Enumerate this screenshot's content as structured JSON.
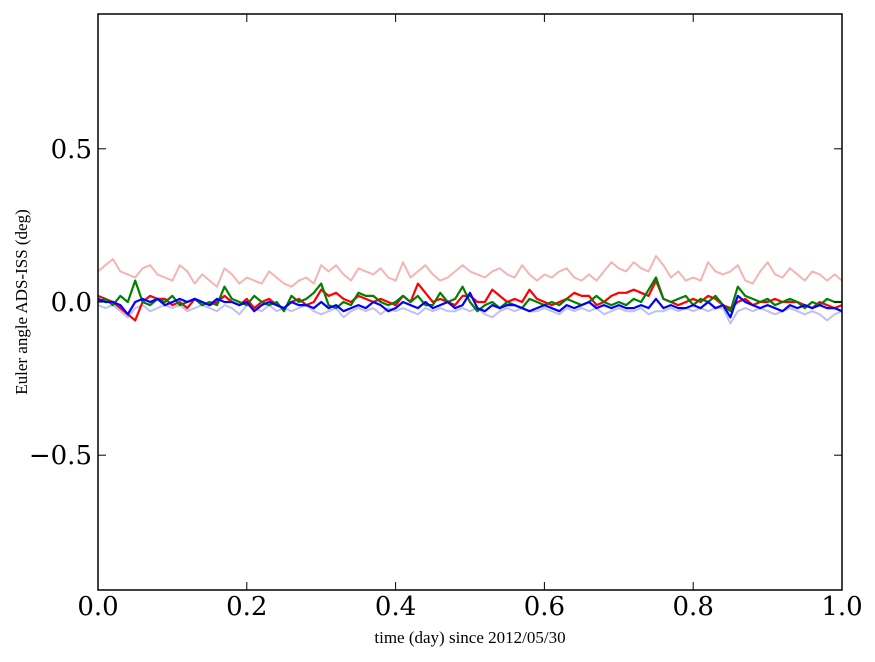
{
  "chart_data": {
    "type": "line",
    "title": "",
    "xlabel": "time (day) since 2012/05/30",
    "ylabel": "Euler angle ADS-ISS (deg)",
    "xlim": [
      0.0,
      1.0
    ],
    "ylim": [
      -0.94,
      0.94
    ],
    "xticks": [
      0.0,
      0.2,
      0.4,
      0.6,
      0.8,
      1.0
    ],
    "xtick_labels": [
      "0.0",
      "0.2",
      "0.4",
      "0.6",
      "0.8",
      "1.0"
    ],
    "yticks": [
      -0.5,
      0.0,
      0.5
    ],
    "ytick_labels": [
      "−0.5",
      "0.0",
      "0.5"
    ],
    "grid": false,
    "legend": "none",
    "series": [
      {
        "color": "#f5b4b4",
        "x": [
          0.0,
          0.01,
          0.02,
          0.03,
          0.04,
          0.05,
          0.06,
          0.07,
          0.08,
          0.09,
          0.1,
          0.11,
          0.12,
          0.13,
          0.14,
          0.15,
          0.16,
          0.17,
          0.18,
          0.19,
          0.2,
          0.21,
          0.22,
          0.23,
          0.24,
          0.25,
          0.26,
          0.27,
          0.28,
          0.29,
          0.3,
          0.31,
          0.32,
          0.33,
          0.34,
          0.35,
          0.36,
          0.37,
          0.38,
          0.39,
          0.4,
          0.41,
          0.42,
          0.43,
          0.44,
          0.45,
          0.46,
          0.47,
          0.48,
          0.49,
          0.5,
          0.51,
          0.52,
          0.53,
          0.54,
          0.55,
          0.56,
          0.57,
          0.58,
          0.59,
          0.6,
          0.61,
          0.62,
          0.63,
          0.64,
          0.65,
          0.66,
          0.67,
          0.68,
          0.69,
          0.7,
          0.71,
          0.72,
          0.73,
          0.74,
          0.75,
          0.76,
          0.77,
          0.78,
          0.79,
          0.8,
          0.81,
          0.82,
          0.83,
          0.84,
          0.85,
          0.86,
          0.87,
          0.88,
          0.89,
          0.9,
          0.91,
          0.92,
          0.93,
          0.94,
          0.95,
          0.96,
          0.97,
          0.98,
          0.99,
          1.0
        ],
        "y": [
          0.1,
          0.12,
          0.14,
          0.1,
          0.09,
          0.08,
          0.11,
          0.12,
          0.09,
          0.08,
          0.07,
          0.12,
          0.1,
          0.06,
          0.09,
          0.07,
          0.05,
          0.11,
          0.09,
          0.06,
          0.08,
          0.07,
          0.06,
          0.1,
          0.08,
          0.06,
          0.05,
          0.07,
          0.08,
          0.06,
          0.12,
          0.1,
          0.12,
          0.09,
          0.07,
          0.11,
          0.1,
          0.09,
          0.11,
          0.08,
          0.07,
          0.13,
          0.08,
          0.1,
          0.12,
          0.09,
          0.07,
          0.08,
          0.1,
          0.12,
          0.1,
          0.09,
          0.08,
          0.1,
          0.11,
          0.09,
          0.08,
          0.12,
          0.09,
          0.07,
          0.09,
          0.08,
          0.1,
          0.11,
          0.08,
          0.07,
          0.09,
          0.07,
          0.1,
          0.13,
          0.11,
          0.1,
          0.13,
          0.11,
          0.1,
          0.15,
          0.12,
          0.08,
          0.1,
          0.07,
          0.08,
          0.07,
          0.13,
          0.1,
          0.09,
          0.1,
          0.12,
          0.07,
          0.06,
          0.1,
          0.13,
          0.09,
          0.08,
          0.11,
          0.09,
          0.07,
          0.1,
          0.09,
          0.07,
          0.09,
          0.07
        ]
      },
      {
        "color": "#c0c0f5",
        "x": [
          0.0,
          0.01,
          0.02,
          0.03,
          0.04,
          0.05,
          0.06,
          0.07,
          0.08,
          0.09,
          0.1,
          0.11,
          0.12,
          0.13,
          0.14,
          0.15,
          0.16,
          0.17,
          0.18,
          0.19,
          0.2,
          0.21,
          0.22,
          0.23,
          0.24,
          0.25,
          0.26,
          0.27,
          0.28,
          0.29,
          0.3,
          0.31,
          0.32,
          0.33,
          0.34,
          0.35,
          0.36,
          0.37,
          0.38,
          0.39,
          0.4,
          0.41,
          0.42,
          0.43,
          0.44,
          0.45,
          0.46,
          0.47,
          0.48,
          0.49,
          0.5,
          0.51,
          0.52,
          0.53,
          0.54,
          0.55,
          0.56,
          0.57,
          0.58,
          0.59,
          0.6,
          0.61,
          0.62,
          0.63,
          0.64,
          0.65,
          0.66,
          0.67,
          0.68,
          0.69,
          0.7,
          0.71,
          0.72,
          0.73,
          0.74,
          0.75,
          0.76,
          0.77,
          0.78,
          0.79,
          0.8,
          0.81,
          0.82,
          0.83,
          0.84,
          0.85,
          0.86,
          0.87,
          0.88,
          0.89,
          0.9,
          0.91,
          0.92,
          0.93,
          0.94,
          0.95,
          0.96,
          0.97,
          0.98,
          0.99,
          1.0
        ],
        "y": [
          -0.01,
          -0.02,
          -0.01,
          -0.03,
          -0.05,
          -0.02,
          -0.01,
          -0.03,
          -0.02,
          -0.01,
          -0.02,
          -0.01,
          -0.03,
          -0.02,
          -0.01,
          -0.02,
          -0.03,
          -0.01,
          -0.02,
          -0.04,
          -0.01,
          -0.02,
          -0.03,
          -0.01,
          -0.03,
          -0.02,
          -0.03,
          -0.02,
          -0.01,
          -0.03,
          -0.04,
          -0.03,
          -0.02,
          -0.05,
          -0.03,
          -0.02,
          -0.03,
          -0.02,
          -0.04,
          -0.02,
          -0.03,
          -0.02,
          -0.03,
          -0.04,
          -0.02,
          -0.03,
          -0.02,
          -0.03,
          -0.03,
          -0.02,
          -0.03,
          -0.02,
          -0.04,
          -0.05,
          -0.03,
          -0.02,
          -0.03,
          -0.02,
          -0.03,
          -0.03,
          -0.02,
          -0.03,
          -0.04,
          -0.02,
          -0.03,
          -0.02,
          -0.03,
          -0.02,
          -0.04,
          -0.03,
          -0.02,
          -0.03,
          -0.03,
          -0.02,
          -0.04,
          -0.03,
          -0.03,
          -0.02,
          -0.03,
          -0.02,
          -0.03,
          -0.02,
          -0.03,
          -0.02,
          -0.02,
          -0.07,
          -0.03,
          -0.02,
          -0.03,
          -0.02,
          -0.03,
          -0.04,
          -0.03,
          -0.02,
          -0.03,
          -0.04,
          -0.03,
          -0.04,
          -0.06,
          -0.04,
          -0.03
        ]
      },
      {
        "color": "#ff0000",
        "x": [
          0.0,
          0.01,
          0.02,
          0.03,
          0.04,
          0.05,
          0.06,
          0.07,
          0.08,
          0.09,
          0.1,
          0.11,
          0.12,
          0.13,
          0.14,
          0.15,
          0.16,
          0.17,
          0.18,
          0.19,
          0.2,
          0.21,
          0.22,
          0.23,
          0.24,
          0.25,
          0.26,
          0.27,
          0.28,
          0.29,
          0.3,
          0.31,
          0.32,
          0.33,
          0.34,
          0.35,
          0.36,
          0.37,
          0.38,
          0.39,
          0.4,
          0.41,
          0.42,
          0.43,
          0.44,
          0.45,
          0.46,
          0.47,
          0.48,
          0.49,
          0.5,
          0.51,
          0.52,
          0.53,
          0.54,
          0.55,
          0.56,
          0.57,
          0.58,
          0.59,
          0.6,
          0.61,
          0.62,
          0.63,
          0.64,
          0.65,
          0.66,
          0.67,
          0.68,
          0.69,
          0.7,
          0.71,
          0.72,
          0.73,
          0.74,
          0.75,
          0.76,
          0.77,
          0.78,
          0.79,
          0.8,
          0.81,
          0.82,
          0.83,
          0.84,
          0.85,
          0.86,
          0.87,
          0.88,
          0.89,
          0.9,
          0.91,
          0.92,
          0.93,
          0.94,
          0.95,
          0.96,
          0.97,
          0.98,
          0.99,
          1.0
        ],
        "y": [
          0.02,
          0.01,
          0.0,
          -0.02,
          -0.04,
          -0.06,
          0.0,
          0.02,
          0.01,
          0.01,
          -0.01,
          0.0,
          -0.02,
          0.01,
          0.0,
          -0.01,
          0.0,
          0.02,
          0.0,
          -0.01,
          0.01,
          -0.02,
          0.0,
          0.01,
          -0.01,
          -0.02,
          0.0,
          0.01,
          -0.01,
          0.0,
          0.04,
          0.02,
          0.03,
          0.01,
          0.0,
          0.02,
          0.01,
          0.0,
          0.01,
          0.0,
          -0.01,
          0.02,
          0.0,
          0.06,
          0.03,
          0.0,
          0.01,
          0.0,
          -0.01,
          0.02,
          0.02,
          0.0,
          0.0,
          0.04,
          0.02,
          0.0,
          0.01,
          0.0,
          0.04,
          0.01,
          0.0,
          -0.01,
          0.0,
          0.01,
          0.03,
          0.02,
          0.02,
          -0.01,
          0.0,
          0.02,
          0.03,
          0.03,
          0.04,
          0.03,
          0.02,
          0.07,
          0.01,
          0.0,
          -0.01,
          0.0,
          0.01,
          0.0,
          0.02,
          0.01,
          -0.01,
          -0.02,
          0.0,
          0.01,
          -0.01,
          0.0,
          0.0,
          0.01,
          0.0,
          0.0,
          0.0,
          -0.01,
          -0.02,
          0.0,
          -0.01,
          -0.02,
          -0.01
        ]
      },
      {
        "color": "#008000",
        "x": [
          0.0,
          0.01,
          0.02,
          0.03,
          0.04,
          0.05,
          0.06,
          0.07,
          0.08,
          0.09,
          0.1,
          0.11,
          0.12,
          0.13,
          0.14,
          0.15,
          0.16,
          0.17,
          0.18,
          0.19,
          0.2,
          0.21,
          0.22,
          0.23,
          0.24,
          0.25,
          0.26,
          0.27,
          0.28,
          0.29,
          0.3,
          0.31,
          0.32,
          0.33,
          0.34,
          0.35,
          0.36,
          0.37,
          0.38,
          0.39,
          0.4,
          0.41,
          0.42,
          0.43,
          0.44,
          0.45,
          0.46,
          0.47,
          0.48,
          0.49,
          0.5,
          0.51,
          0.52,
          0.53,
          0.54,
          0.55,
          0.56,
          0.57,
          0.58,
          0.59,
          0.6,
          0.61,
          0.62,
          0.63,
          0.64,
          0.65,
          0.66,
          0.67,
          0.68,
          0.69,
          0.7,
          0.71,
          0.72,
          0.73,
          0.74,
          0.75,
          0.76,
          0.77,
          0.78,
          0.79,
          0.8,
          0.81,
          0.82,
          0.83,
          0.84,
          0.85,
          0.86,
          0.87,
          0.88,
          0.89,
          0.9,
          0.91,
          0.92,
          0.93,
          0.94,
          0.95,
          0.96,
          0.97,
          0.98,
          0.99,
          1.0
        ],
        "y": [
          0.0,
          0.01,
          -0.01,
          0.02,
          0.0,
          0.07,
          0.0,
          -0.01,
          0.01,
          0.0,
          0.02,
          -0.01,
          0.0,
          0.01,
          -0.01,
          0.0,
          -0.01,
          0.05,
          0.01,
          0.0,
          -0.01,
          0.02,
          0.0,
          -0.01,
          0.0,
          -0.03,
          0.02,
          0.0,
          0.01,
          0.03,
          0.06,
          -0.01,
          -0.02,
          0.0,
          -0.01,
          0.03,
          0.02,
          0.02,
          0.0,
          -0.01,
          0.0,
          0.02,
          0.0,
          0.02,
          -0.01,
          -0.01,
          0.03,
          0.0,
          0.01,
          0.05,
          0.0,
          -0.03,
          -0.01,
          0.0,
          -0.02,
          0.0,
          -0.01,
          -0.02,
          0.01,
          0.0,
          -0.01,
          0.0,
          -0.01,
          0.01,
          0.0,
          -0.01,
          0.0,
          0.02,
          0.0,
          -0.01,
          0.0,
          -0.01,
          0.01,
          0.0,
          0.04,
          0.08,
          0.01,
          0.0,
          0.01,
          0.02,
          -0.01,
          0.01,
          0.0,
          0.02,
          -0.01,
          -0.03,
          0.05,
          0.02,
          0.01,
          0.0,
          0.01,
          -0.01,
          0.0,
          0.01,
          0.0,
          -0.02,
          0.0,
          -0.01,
          0.01,
          0.0,
          0.0
        ]
      },
      {
        "color": "#0000ff",
        "x": [
          0.0,
          0.01,
          0.02,
          0.03,
          0.04,
          0.05,
          0.06,
          0.07,
          0.08,
          0.09,
          0.1,
          0.11,
          0.12,
          0.13,
          0.14,
          0.15,
          0.16,
          0.17,
          0.18,
          0.19,
          0.2,
          0.21,
          0.22,
          0.23,
          0.24,
          0.25,
          0.26,
          0.27,
          0.28,
          0.29,
          0.3,
          0.31,
          0.32,
          0.33,
          0.34,
          0.35,
          0.36,
          0.37,
          0.38,
          0.39,
          0.4,
          0.41,
          0.42,
          0.43,
          0.44,
          0.45,
          0.46,
          0.47,
          0.48,
          0.49,
          0.5,
          0.51,
          0.52,
          0.53,
          0.54,
          0.55,
          0.56,
          0.57,
          0.58,
          0.59,
          0.6,
          0.61,
          0.62,
          0.63,
          0.64,
          0.65,
          0.66,
          0.67,
          0.68,
          0.69,
          0.7,
          0.71,
          0.72,
          0.73,
          0.74,
          0.75,
          0.76,
          0.77,
          0.78,
          0.79,
          0.8,
          0.81,
          0.82,
          0.83,
          0.84,
          0.85,
          0.86,
          0.87,
          0.88,
          0.89,
          0.9,
          0.91,
          0.92,
          0.93,
          0.94,
          0.95,
          0.96,
          0.97,
          0.98,
          0.99,
          1.0
        ],
        "y": [
          0.01,
          0.0,
          0.0,
          -0.01,
          -0.04,
          0.0,
          0.01,
          0.0,
          0.01,
          -0.01,
          0.0,
          0.01,
          0.0,
          0.01,
          0.0,
          -0.01,
          0.01,
          0.0,
          0.0,
          -0.01,
          0.0,
          -0.03,
          -0.01,
          0.0,
          -0.01,
          -0.02,
          0.0,
          -0.01,
          -0.01,
          -0.02,
          0.0,
          -0.02,
          -0.01,
          -0.03,
          -0.02,
          -0.01,
          -0.02,
          0.0,
          -0.01,
          -0.03,
          -0.02,
          0.0,
          -0.01,
          -0.02,
          0.0,
          -0.02,
          -0.01,
          0.0,
          -0.02,
          -0.01,
          0.03,
          -0.02,
          -0.03,
          -0.01,
          -0.02,
          -0.01,
          -0.01,
          -0.02,
          -0.03,
          -0.02,
          -0.01,
          -0.02,
          -0.03,
          -0.01,
          -0.02,
          -0.01,
          0.0,
          -0.02,
          -0.01,
          -0.02,
          -0.01,
          -0.02,
          -0.02,
          -0.01,
          -0.02,
          0.01,
          -0.02,
          -0.01,
          -0.02,
          -0.02,
          -0.01,
          -0.02,
          0.0,
          -0.02,
          -0.01,
          -0.05,
          0.02,
          0.0,
          -0.01,
          -0.02,
          -0.01,
          -0.02,
          -0.03,
          -0.01,
          -0.02,
          -0.01,
          -0.02,
          -0.01,
          -0.02,
          -0.02,
          -0.03
        ]
      }
    ]
  }
}
